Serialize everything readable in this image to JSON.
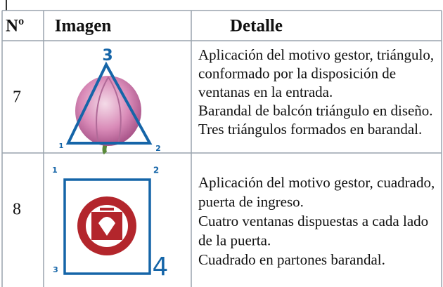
{
  "table": {
    "header": [
      "Nº",
      "Imagen",
      "Detalle"
    ],
    "rows": [
      {
        "number": "7",
        "image_labels": [
          "3",
          "1",
          "2"
        ],
        "detail": [
          "Aplicación del motivo gestor, triángulo,",
          "conformado por la disposición de",
          "ventanas en la entrada.",
          "Barandal de balcón triángulo en diseño.",
          "Tres triángulos formados en barandal."
        ]
      },
      {
        "number": "8",
        "image_labels": [
          "1",
          "2",
          "3",
          "4"
        ],
        "detail": [
          "Aplicación del motivo gestor, cuadrado,",
          "puerta de ingreso.",
          "Cuatro ventanas dispuestas a cada lado",
          "de la puerta.",
          "Cuadrado en partones barandal."
        ]
      }
    ]
  }
}
